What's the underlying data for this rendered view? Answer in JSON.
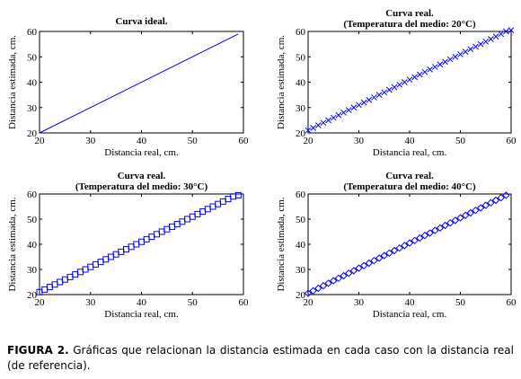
{
  "chart_data": [
    {
      "type": "line",
      "title": "Curva ideal.",
      "subtitle": "",
      "xlabel": "Distancia real, cm.",
      "ylabel": "Distancia estimada, cm.",
      "xlim": [
        20,
        60
      ],
      "ylim": [
        20,
        60
      ],
      "xticks": [
        20,
        30,
        40,
        50,
        60
      ],
      "yticks": [
        20,
        30,
        40,
        50,
        60
      ],
      "grid": false,
      "marker": "none",
      "color": "#0000ff",
      "series": [
        {
          "x": [
            20,
            59
          ],
          "y": [
            20,
            59
          ]
        }
      ]
    },
    {
      "type": "scatter",
      "title": "Curva real.",
      "subtitle": "(Temperatura del medio: 20°C)",
      "xlabel": "Distancia real, cm.",
      "ylabel": "Distancia estimada, cm.",
      "xlim": [
        20,
        60
      ],
      "ylim": [
        20,
        60
      ],
      "xticks": [
        20,
        30,
        40,
        50,
        60
      ],
      "yticks": [
        20,
        30,
        40,
        50,
        60
      ],
      "grid": false,
      "marker": "x",
      "color": "#0000ff",
      "series": [
        {
          "x": [
            20,
            21,
            22,
            23,
            24,
            25,
            26,
            27,
            28,
            29,
            30,
            31,
            32,
            33,
            34,
            35,
            36,
            37,
            38,
            39,
            40,
            41,
            42,
            43,
            44,
            45,
            46,
            47,
            48,
            49,
            50,
            51,
            52,
            53,
            54,
            55,
            56,
            57,
            58,
            59,
            60
          ],
          "y": [
            21,
            22,
            23,
            24,
            25,
            26,
            27,
            28,
            29,
            30,
            31,
            32,
            33,
            34,
            35,
            36,
            37,
            38,
            39,
            40,
            41,
            42,
            43,
            44,
            45,
            46,
            47,
            48,
            49,
            50,
            51,
            52,
            53,
            54,
            55,
            56,
            57,
            58,
            59,
            60,
            60.5
          ]
        }
      ]
    },
    {
      "type": "scatter",
      "title": "Curva real.",
      "subtitle": "(Temperatura del medio: 30°C)",
      "xlabel": "Distancia real, cm.",
      "ylabel": "Distancia estimada, cm.",
      "xlim": [
        20,
        60
      ],
      "ylim": [
        20,
        60
      ],
      "xticks": [
        20,
        30,
        40,
        50,
        60
      ],
      "yticks": [
        20,
        30,
        40,
        50,
        60
      ],
      "grid": false,
      "marker": "square",
      "color": "#0000ff",
      "series": [
        {
          "x": [
            20,
            21,
            22,
            23,
            24,
            25,
            26,
            27,
            28,
            29,
            30,
            31,
            32,
            33,
            34,
            35,
            36,
            37,
            38,
            39,
            40,
            41,
            42,
            43,
            44,
            45,
            46,
            47,
            48,
            49,
            50,
            51,
            52,
            53,
            54,
            55,
            56,
            57,
            58,
            59
          ],
          "y": [
            21,
            22,
            23,
            24,
            25,
            26,
            27,
            28,
            29,
            30,
            31,
            32,
            33,
            34,
            35,
            36,
            37,
            38,
            39,
            40,
            41,
            42,
            43,
            44,
            45,
            46,
            47,
            48,
            49,
            50,
            51,
            52,
            53,
            54,
            55,
            56,
            57,
            58,
            59,
            59.5
          ]
        }
      ]
    },
    {
      "type": "scatter",
      "title": "Curva real.",
      "subtitle": "(Temperatura del medio: 40°C)",
      "xlabel": "Distancia real, cm.",
      "ylabel": "Distancia estimada, cm.",
      "xlim": [
        20,
        60
      ],
      "ylim": [
        20,
        60
      ],
      "xticks": [
        20,
        30,
        40,
        50,
        60
      ],
      "yticks": [
        20,
        30,
        40,
        50,
        60
      ],
      "grid": false,
      "marker": "diamond",
      "color": "#0000ff",
      "series": [
        {
          "x": [
            20,
            21,
            22,
            23,
            24,
            25,
            26,
            27,
            28,
            29,
            30,
            31,
            32,
            33,
            34,
            35,
            36,
            37,
            38,
            39,
            40,
            41,
            42,
            43,
            44,
            45,
            46,
            47,
            48,
            49,
            50,
            51,
            52,
            53,
            54,
            55,
            56,
            57,
            58,
            59
          ],
          "y": [
            20.5,
            21.5,
            22.5,
            23.5,
            24.5,
            25.5,
            26.5,
            27.5,
            28.5,
            29.5,
            30.5,
            31.5,
            32.5,
            33.5,
            34.5,
            35.5,
            36.5,
            37.5,
            38.5,
            39.5,
            40.5,
            41.5,
            42.5,
            43.5,
            44.5,
            45.5,
            46.5,
            47.5,
            48.5,
            49.5,
            50.5,
            51.5,
            52.5,
            53.5,
            54.5,
            55.5,
            56.5,
            57.5,
            58.5,
            59.5
          ]
        }
      ]
    }
  ],
  "caption": {
    "label": "FIGURA 2.",
    "text": " Gráficas que relacionan la distancia estimada en cada caso con la distancia real (de referencia)."
  }
}
